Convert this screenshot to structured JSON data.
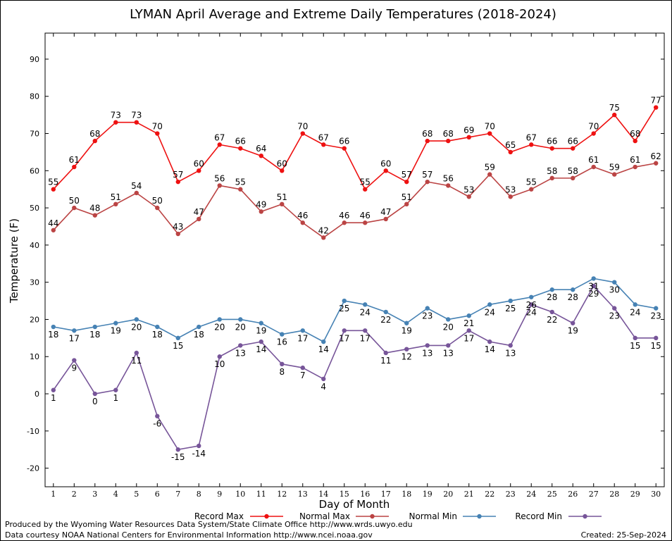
{
  "chart_data": {
    "type": "line",
    "title": "LYMAN April Average and Extreme Daily Temperatures (2018-2024)",
    "xlabel": "Day of Month",
    "ylabel": "Temperature (F)",
    "xlim": [
      0.6,
      30.4
    ],
    "ylim": [
      -25,
      97
    ],
    "x": [
      1,
      2,
      3,
      4,
      5,
      6,
      7,
      8,
      9,
      10,
      11,
      12,
      13,
      14,
      15,
      16,
      17,
      18,
      19,
      20,
      21,
      22,
      23,
      24,
      25,
      26,
      27,
      28,
      29,
      30
    ],
    "yticks": [
      -20,
      -10,
      0,
      10,
      20,
      30,
      40,
      50,
      60,
      70,
      80,
      90
    ],
    "yticklabels": [
      "-20",
      "-10",
      "0",
      "10",
      "20",
      "30",
      "40",
      "50",
      "60",
      "70",
      "80",
      "90"
    ],
    "xticklabels": [
      "1",
      "2",
      "3",
      "4",
      "5",
      "6",
      "7",
      "8",
      "9",
      "10",
      "11",
      "12",
      "13",
      "14",
      "15",
      "16",
      "17",
      "18",
      "19",
      "20",
      "21",
      "22",
      "23",
      "24",
      "25",
      "26",
      "27",
      "28",
      "29",
      "30"
    ],
    "grid": true,
    "legend_position": "bottom",
    "series": [
      {
        "name": "Record Max",
        "color": "#ee1111",
        "label_pos": "above",
        "values": [
          55,
          61,
          68,
          73,
          73,
          70,
          57,
          60,
          67,
          66,
          64,
          60,
          70,
          67,
          66,
          55,
          60,
          57,
          68,
          68,
          69,
          70,
          65,
          67,
          66,
          66,
          70,
          75,
          68,
          77
        ]
      },
      {
        "name": "Normal Max",
        "color": "#bb4444",
        "label_pos": "above",
        "values": [
          44,
          50,
          48,
          51,
          54,
          50,
          43,
          47,
          56,
          55,
          49,
          51,
          46,
          42,
          46,
          46,
          47,
          51,
          57,
          56,
          53,
          59,
          53,
          55,
          58,
          58,
          61,
          59,
          61,
          62
        ]
      },
      {
        "name": "Normal Min",
        "color": "#4682b4",
        "label_pos": "below",
        "values": [
          18,
          17,
          18,
          19,
          20,
          18,
          15,
          18,
          20,
          20,
          19,
          16,
          17,
          14,
          25,
          24,
          22,
          19,
          23,
          20,
          21,
          24,
          25,
          26,
          28,
          28,
          31,
          30,
          24,
          23
        ]
      },
      {
        "name": "Record Min",
        "color": "#775599",
        "label_pos": "below",
        "values": [
          1,
          9,
          0,
          1,
          11,
          -6,
          -15,
          -14,
          10,
          13,
          14,
          8,
          7,
          4,
          17,
          17,
          11,
          12,
          13,
          13,
          17,
          14,
          13,
          24,
          22,
          19,
          29,
          23,
          15,
          15
        ]
      }
    ]
  },
  "footer": {
    "line1": "Produced by the Wyoming Water Resources Data System/State Climate Office http://www.wrds.uwyo.edu",
    "line2": "Data courtesy NOAA National Centers for Environmental Information http://www.ncei.noaa.gov",
    "created": "Created:  25-Sep-2024"
  }
}
